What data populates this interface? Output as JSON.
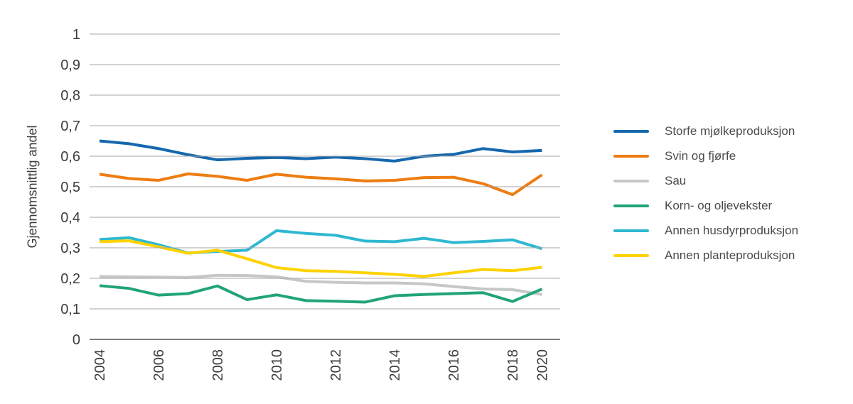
{
  "chart_data": {
    "type": "line",
    "title": "",
    "ylabel": "Gjennomsnittlig andel",
    "xlabel": "",
    "ylim": [
      0,
      1
    ],
    "grid": true,
    "legend_position": "right",
    "gridline_color": "#a5a5a5",
    "axis_color": "#7c7c7c",
    "text_color": "#3d3d3d",
    "yticks": [
      {
        "v": 0.0,
        "label": "0"
      },
      {
        "v": 0.1,
        "label": "0,1"
      },
      {
        "v": 0.2,
        "label": "0,2"
      },
      {
        "v": 0.3,
        "label": "0,3"
      },
      {
        "v": 0.4,
        "label": "0,4"
      },
      {
        "v": 0.5,
        "label": "0,5"
      },
      {
        "v": 0.6,
        "label": "0,6"
      },
      {
        "v": 0.7,
        "label": "0,7"
      },
      {
        "v": 0.8,
        "label": "0,8"
      },
      {
        "v": 0.9,
        "label": "0,9"
      },
      {
        "v": 1.0,
        "label": "1"
      }
    ],
    "categories": [
      "2004",
      "2005",
      "2006",
      "2007",
      "2008",
      "2009",
      "2010",
      "2011",
      "2012",
      "2013",
      "2014",
      "2015",
      "2016",
      "2017",
      "2018",
      "2020"
    ],
    "xtick_indices": [
      0,
      2,
      4,
      6,
      8,
      10,
      12,
      14,
      15
    ],
    "series": [
      {
        "name": "Storfe mjølkeproduksjon",
        "color": "#1568ae",
        "values": [
          0.65,
          0.641,
          0.625,
          0.605,
          0.588,
          0.593,
          0.596,
          0.592,
          0.597,
          0.592,
          0.584,
          0.6,
          0.606,
          0.625,
          0.614,
          0.619
        ]
      },
      {
        "name": "Svin og fjørfe",
        "color": "#ee7d11",
        "values": [
          0.541,
          0.527,
          0.521,
          0.542,
          0.534,
          0.521,
          0.541,
          0.531,
          0.526,
          0.519,
          0.521,
          0.53,
          0.531,
          0.51,
          0.474,
          0.539
        ]
      },
      {
        "name": "Sau",
        "color": "#c6c7c8",
        "values": [
          0.206,
          0.205,
          0.204,
          0.203,
          0.21,
          0.209,
          0.205,
          0.19,
          0.187,
          0.185,
          0.185,
          0.182,
          0.173,
          0.165,
          0.163,
          0.147
        ]
      },
      {
        "name": "Korn- og oljevekster",
        "color": "#20a478",
        "values": [
          0.176,
          0.167,
          0.145,
          0.15,
          0.175,
          0.13,
          0.146,
          0.127,
          0.125,
          0.122,
          0.143,
          0.147,
          0.15,
          0.153,
          0.124,
          0.165
        ]
      },
      {
        "name": "Annen husdyrproduksjon",
        "color": "#2fb8d1",
        "values": [
          0.327,
          0.333,
          0.31,
          0.283,
          0.288,
          0.292,
          0.356,
          0.347,
          0.341,
          0.322,
          0.32,
          0.331,
          0.317,
          0.321,
          0.326,
          0.297
        ]
      },
      {
        "name": "Annen planteproduksjon",
        "color": "#ffd200",
        "values": [
          0.32,
          0.323,
          0.303,
          0.282,
          0.292,
          0.264,
          0.235,
          0.225,
          0.223,
          0.218,
          0.213,
          0.206,
          0.218,
          0.229,
          0.225,
          0.236
        ]
      }
    ]
  }
}
